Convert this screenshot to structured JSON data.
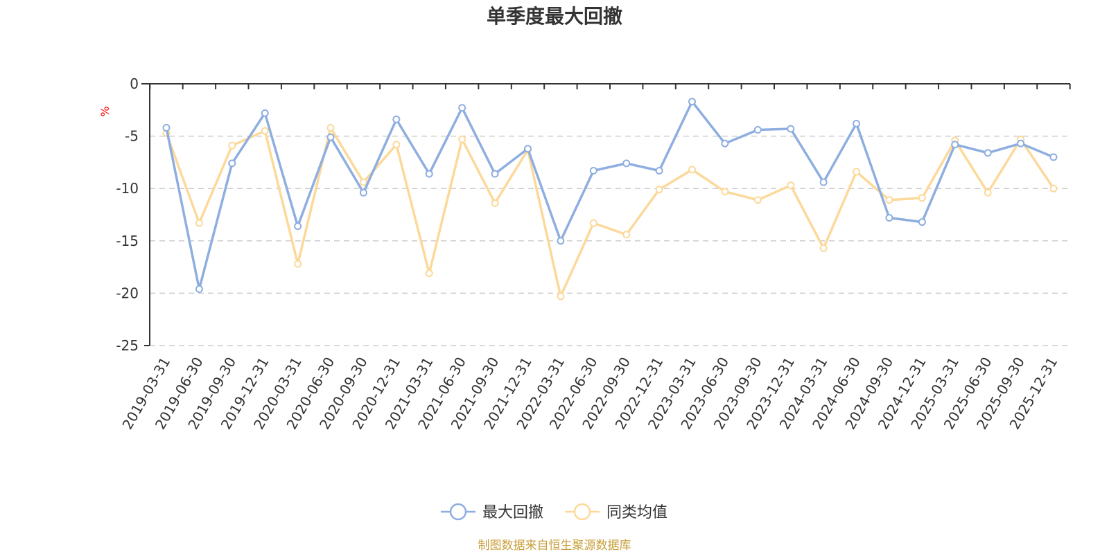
{
  "colors": {
    "series_1": "#8eaee0",
    "series_2": "#fcd99a",
    "axis": "#333333",
    "grid": "#cccccc",
    "unit": "#ff0000",
    "source": "#c8a03c"
  },
  "footer": {
    "source": "制图数据来自恒生聚源数据库"
  },
  "chart_data": {
    "type": "line",
    "title": "单季度最大回撤",
    "ylabel": "%",
    "xlabel": "",
    "ylim": [
      -25,
      0
    ],
    "yticks": [
      0,
      -5,
      -10,
      -15,
      -20,
      -25
    ],
    "grid": "horizontal-dashed",
    "legend_position": "bottom-center",
    "categories": [
      "2019-03-31",
      "2019-06-30",
      "2019-09-30",
      "2019-12-31",
      "2020-03-31",
      "2020-06-30",
      "2020-09-30",
      "2020-12-31",
      "2021-03-31",
      "2021-06-30",
      "2021-09-30",
      "2021-12-31",
      "2022-03-31",
      "2022-06-30",
      "2022-09-30",
      "2022-12-31",
      "2023-03-31",
      "2023-06-30",
      "2023-09-30",
      "2023-12-31",
      "2024-03-31",
      "2024-06-30",
      "2024-09-30",
      "2024-12-31",
      "2025-03-31",
      "2025-06-30",
      "2025-09-30",
      "2025-12-31"
    ],
    "series": [
      {
        "name": "最大回撤",
        "values": [
          -4.2,
          -19.6,
          -7.6,
          -2.8,
          -13.6,
          -5.1,
          -10.4,
          -3.4,
          -8.6,
          -2.3,
          -8.6,
          -6.2,
          -15.0,
          -8.3,
          -7.6,
          -8.3,
          -1.7,
          -5.7,
          -4.4,
          -4.3,
          -9.4,
          -3.8,
          -12.8,
          -13.2,
          -5.8,
          -6.6,
          -5.7,
          -7.0
        ]
      },
      {
        "name": "同类均值",
        "values": [
          -4.7,
          -13.3,
          -5.9,
          -4.5,
          -17.2,
          -4.2,
          -9.4,
          -5.8,
          -18.1,
          -5.3,
          -11.4,
          -6.3,
          -20.3,
          -13.3,
          -14.4,
          -10.1,
          -8.2,
          -10.3,
          -11.1,
          -9.7,
          -15.7,
          -8.4,
          -11.1,
          -10.9,
          -5.4,
          -10.4,
          -5.3,
          -10.0
        ]
      }
    ]
  }
}
